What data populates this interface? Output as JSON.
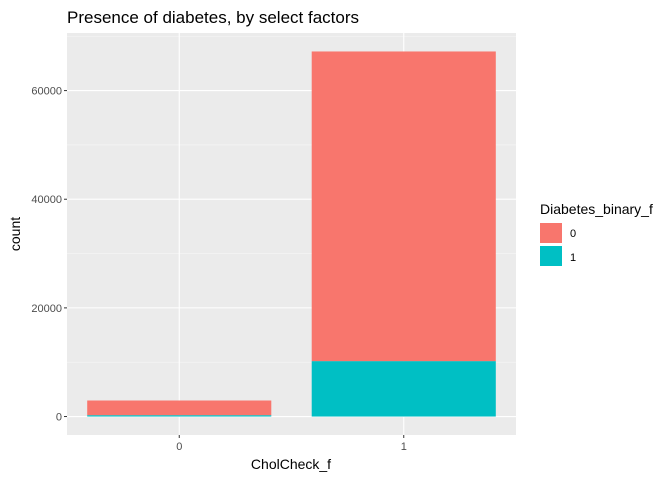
{
  "chart_data": {
    "type": "bar",
    "stacked": true,
    "title": "Presence of diabetes, by select factors",
    "xlabel": "CholCheck_f",
    "ylabel": "count",
    "categories": [
      "0",
      "1"
    ],
    "series": [
      {
        "name": "0",
        "values": [
          2700,
          57000
        ],
        "color": "#F8766D"
      },
      {
        "name": "1",
        "values": [
          250,
          10200
        ],
        "color": "#00BFC4"
      }
    ],
    "ylim": [
      -3400,
      70600
    ],
    "yticks": [
      0,
      20000,
      40000,
      60000
    ],
    "ytick_labels": [
      "0",
      "20000",
      "40000",
      "60000"
    ],
    "grid": true,
    "legend": {
      "title": "Diabetes_binary_f",
      "position": "right",
      "entries": [
        "0",
        "1"
      ]
    }
  }
}
